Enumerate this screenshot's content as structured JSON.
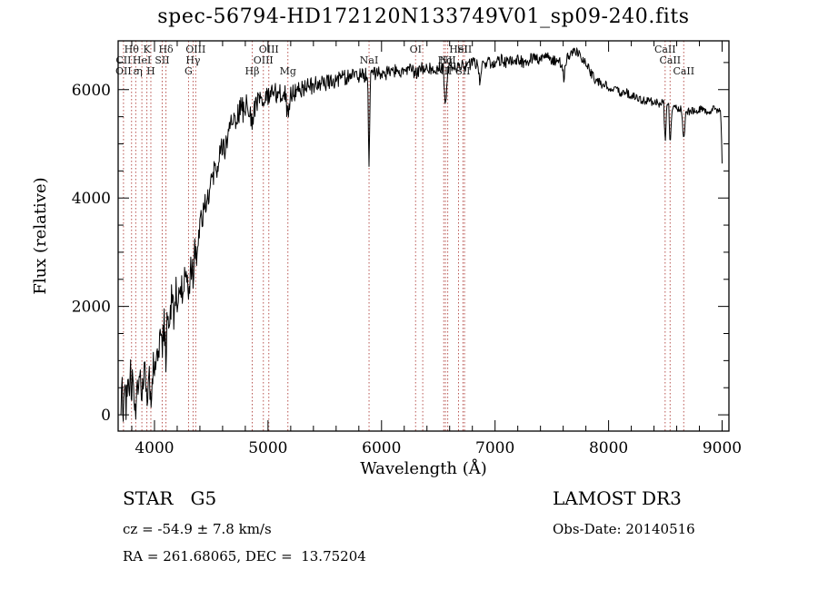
{
  "title": "spec-56794-HD172120N133749V01_sp09-240.fits",
  "axes": {
    "x_label": "Wavelength (Å)",
    "y_label": "Flux (relative)"
  },
  "annotations": {
    "class_line": "STAR   G5",
    "cz_line": "cz = -54.9 ± 7.8 km/s",
    "radec_line": "RA = 261.68065, DEC =  13.75204",
    "survey": "LAMOST DR3",
    "obs_date": "Obs-Date: 20140516"
  },
  "chart_data": {
    "type": "line",
    "title": "spec-56794-HD172120N133749V01_sp09-240.fits",
    "xlabel": "Wavelength (Å)",
    "ylabel": "Flux (relative)",
    "xlim": [
      3680,
      9060
    ],
    "ylim": [
      -300,
      6900
    ],
    "x_ticks": [
      4000,
      5000,
      6000,
      7000,
      8000,
      9000
    ],
    "y_ticks": [
      0,
      2000,
      4000,
      6000
    ],
    "x_minor_step": 200,
    "y_minor_step": 500,
    "grid": false,
    "line_color": "#000000",
    "marker_color": "#b85450",
    "label_color": "#1a1a1a",
    "spectral_lines": {
      "wavelengths": [
        3727,
        3798,
        3835,
        3889,
        3933,
        3968,
        4068,
        4101,
        4300,
        4340,
        4363,
        4861,
        4959,
        5007,
        5175,
        5890,
        6300,
        6363,
        6548,
        6563,
        6583,
        6678,
        6717,
        6731,
        8498,
        8542,
        8662
      ],
      "labels": [
        {
          "wl": 3798,
          "row": 1,
          "text": "Hθ"
        },
        {
          "wl": 3933,
          "row": 1,
          "text": "K"
        },
        {
          "wl": 4101,
          "row": 1,
          "text": "Hδ"
        },
        {
          "wl": 4363,
          "row": 1,
          "text": "OIII"
        },
        {
          "wl": 5007,
          "row": 1,
          "text": "OIII"
        },
        {
          "wl": 6300,
          "row": 1,
          "text": "OI"
        },
        {
          "wl": 6678,
          "row": 1,
          "text": "HeI"
        },
        {
          "wl": 6731,
          "row": 1,
          "text": "SII"
        },
        {
          "wl": 8498,
          "row": 1,
          "text": "CaII"
        },
        {
          "wl": 3727,
          "row": 2,
          "text": "CII"
        },
        {
          "wl": 3889,
          "row": 2,
          "text": "HeI"
        },
        {
          "wl": 4068,
          "row": 2,
          "text": "SII"
        },
        {
          "wl": 4340,
          "row": 2,
          "text": "Hγ"
        },
        {
          "wl": 4959,
          "row": 2,
          "text": "OIII"
        },
        {
          "wl": 5890,
          "row": 2,
          "text": "NaI"
        },
        {
          "wl": 6563,
          "row": 2,
          "text": "Hα"
        },
        {
          "wl": 6583,
          "row": 2,
          "text": "NII"
        },
        {
          "wl": 8542,
          "row": 2,
          "text": "CaII"
        },
        {
          "wl": 3727,
          "row": 3,
          "text": "OII"
        },
        {
          "wl": 3835,
          "row": 3,
          "text": "ε"
        },
        {
          "wl": 3868,
          "row": 3,
          "text": "η"
        },
        {
          "wl": 3968,
          "row": 3,
          "text": "H"
        },
        {
          "wl": 4300,
          "row": 3,
          "text": "G"
        },
        {
          "wl": 4861,
          "row": 3,
          "text": "Hβ"
        },
        {
          "wl": 5175,
          "row": 3,
          "text": "Mg"
        },
        {
          "wl": 6548,
          "row": 3,
          "text": "NII"
        },
        {
          "wl": 6717,
          "row": 3,
          "text": "SII"
        },
        {
          "wl": 8662,
          "row": 3,
          "text": "CaII"
        }
      ]
    },
    "spectrum": {
      "seed": 12,
      "step": 5,
      "anchors": [
        [
          3700,
          150
        ],
        [
          3712,
          480
        ],
        [
          3727,
          90
        ],
        [
          3740,
          520
        ],
        [
          3752,
          160
        ],
        [
          3765,
          640
        ],
        [
          3778,
          260
        ],
        [
          3790,
          690
        ],
        [
          3798,
          320
        ],
        [
          3810,
          760
        ],
        [
          3822,
          360
        ],
        [
          3835,
          210
        ],
        [
          3848,
          820
        ],
        [
          3860,
          430
        ],
        [
          3872,
          920
        ],
        [
          3889,
          290
        ],
        [
          3905,
          870
        ],
        [
          3920,
          1020
        ],
        [
          3933,
          160
        ],
        [
          3948,
          820
        ],
        [
          3960,
          560
        ],
        [
          3968,
          110
        ],
        [
          3980,
          720
        ],
        [
          3995,
          1120
        ],
        [
          4010,
          820
        ],
        [
          4025,
          1420
        ],
        [
          4040,
          1020
        ],
        [
          4055,
          1620
        ],
        [
          4068,
          1120
        ],
        [
          4085,
          1720
        ],
        [
          4101,
          1020
        ],
        [
          4115,
          1920
        ],
        [
          4130,
          1620
        ],
        [
          4150,
          2120
        ],
        [
          4170,
          1820
        ],
        [
          4190,
          2320
        ],
        [
          4210,
          2020
        ],
        [
          4230,
          2520
        ],
        [
          4250,
          2220
        ],
        [
          4270,
          2720
        ],
        [
          4290,
          2420
        ],
        [
          4305,
          2320
        ],
        [
          4320,
          2820
        ],
        [
          4340,
          2520
        ],
        [
          4355,
          3020
        ],
        [
          4363,
          2820
        ],
        [
          4380,
          3320
        ],
        [
          4400,
          3520
        ],
        [
          4430,
          3820
        ],
        [
          4460,
          4020
        ],
        [
          4490,
          4220
        ],
        [
          4520,
          4420
        ],
        [
          4550,
          4620
        ],
        [
          4580,
          4820
        ],
        [
          4610,
          4920
        ],
        [
          4640,
          5120
        ],
        [
          4670,
          5320
        ],
        [
          4700,
          5420
        ],
        [
          4730,
          5520
        ],
        [
          4760,
          5620
        ],
        [
          4790,
          5620
        ],
        [
          4820,
          5720
        ],
        [
          4845,
          5720
        ],
        [
          4861,
          5220
        ],
        [
          4880,
          5720
        ],
        [
          4910,
          5820
        ],
        [
          4940,
          5820
        ],
        [
          4959,
          5720
        ],
        [
          4980,
          5870
        ],
        [
          5007,
          5820
        ],
        [
          5030,
          5870
        ],
        [
          5060,
          5920
        ],
        [
          5090,
          5920
        ],
        [
          5120,
          5970
        ],
        [
          5150,
          5920
        ],
        [
          5175,
          5520
        ],
        [
          5200,
          5920
        ],
        [
          5240,
          5970
        ],
        [
          5280,
          6020
        ],
        [
          5320,
          6020
        ],
        [
          5360,
          6070
        ],
        [
          5400,
          6070
        ],
        [
          5450,
          6120
        ],
        [
          5500,
          6120
        ],
        [
          5550,
          6170
        ],
        [
          5600,
          6170
        ],
        [
          5650,
          6220
        ],
        [
          5700,
          6220
        ],
        [
          5750,
          6270
        ],
        [
          5800,
          6270
        ],
        [
          5850,
          6270
        ],
        [
          5878,
          6270
        ],
        [
          5890,
          4550
        ],
        [
          5902,
          6270
        ],
        [
          5950,
          6300
        ],
        [
          6000,
          6300
        ],
        [
          6050,
          6300
        ],
        [
          6100,
          6350
        ],
        [
          6150,
          6350
        ],
        [
          6200,
          6350
        ],
        [
          6250,
          6350
        ],
        [
          6300,
          6300
        ],
        [
          6350,
          6400
        ],
        [
          6400,
          6400
        ],
        [
          6450,
          6400
        ],
        [
          6500,
          6400
        ],
        [
          6545,
          6400
        ],
        [
          6563,
          5650
        ],
        [
          6585,
          6400
        ],
        [
          6630,
          6450
        ],
        [
          6678,
          6400
        ],
        [
          6720,
          6450
        ],
        [
          6760,
          6450
        ],
        [
          6800,
          6500
        ],
        [
          6850,
          6480
        ],
        [
          6869,
          6080
        ],
        [
          6888,
          6480
        ],
        [
          6930,
          6500
        ],
        [
          6970,
          6500
        ],
        [
          7010,
          6500
        ],
        [
          7050,
          6550
        ],
        [
          7100,
          6500
        ],
        [
          7150,
          6550
        ],
        [
          7200,
          6550
        ],
        [
          7250,
          6500
        ],
        [
          7300,
          6550
        ],
        [
          7350,
          6600
        ],
        [
          7400,
          6550
        ],
        [
          7450,
          6600
        ],
        [
          7500,
          6550
        ],
        [
          7550,
          6500
        ],
        [
          7590,
          6500
        ],
        [
          7605,
          6180
        ],
        [
          7620,
          6520
        ],
        [
          7660,
          6650
        ],
        [
          7700,
          6700
        ],
        [
          7740,
          6650
        ],
        [
          7780,
          6550
        ],
        [
          7820,
          6400
        ],
        [
          7860,
          6250
        ],
        [
          7900,
          6150
        ],
        [
          7950,
          6100
        ],
        [
          8000,
          6050
        ],
        [
          8050,
          6000
        ],
        [
          8100,
          5950
        ],
        [
          8150,
          5950
        ],
        [
          8200,
          5900
        ],
        [
          8250,
          5850
        ],
        [
          8300,
          5800
        ],
        [
          8350,
          5800
        ],
        [
          8400,
          5750
        ],
        [
          8450,
          5750
        ],
        [
          8485,
          5750
        ],
        [
          8498,
          5000
        ],
        [
          8512,
          5700
        ],
        [
          8530,
          5700
        ],
        [
          8542,
          4950
        ],
        [
          8558,
          5650
        ],
        [
          8600,
          5650
        ],
        [
          8640,
          5650
        ],
        [
          8662,
          5050
        ],
        [
          8680,
          5600
        ],
        [
          8720,
          5600
        ],
        [
          8760,
          5600
        ],
        [
          8800,
          5650
        ],
        [
          8840,
          5600
        ],
        [
          8880,
          5600
        ],
        [
          8920,
          5650
        ],
        [
          8960,
          5600
        ],
        [
          8985,
          5650
        ],
        [
          9000,
          4700
        ]
      ],
      "noise": [
        [
          3700,
          330
        ],
        [
          4000,
          320
        ],
        [
          4300,
          300
        ],
        [
          4600,
          270
        ],
        [
          4900,
          230
        ],
        [
          5200,
          180
        ],
        [
          5500,
          150
        ],
        [
          5800,
          140
        ],
        [
          6100,
          130
        ],
        [
          6400,
          120
        ],
        [
          6700,
          110
        ],
        [
          7000,
          110
        ],
        [
          7300,
          105
        ],
        [
          7600,
          100
        ],
        [
          7900,
          90
        ],
        [
          8200,
          80
        ],
        [
          8500,
          75
        ],
        [
          8800,
          70
        ],
        [
          9000,
          65
        ]
      ]
    }
  }
}
